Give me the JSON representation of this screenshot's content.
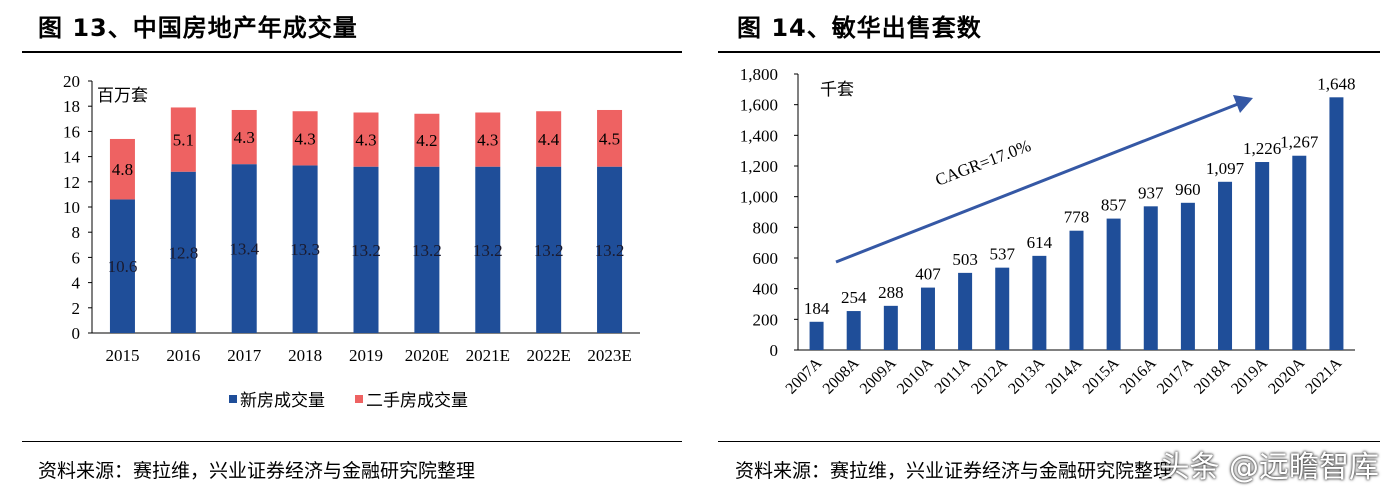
{
  "left": {
    "title": "图 13、中国房地产年成交量",
    "source": "资料来源：赛拉维，兴业证券经济与金融研究院整理"
  },
  "right": {
    "title": "图 14、敏华出售套数",
    "source": "资料来源：赛拉维，兴业证券经济与金融研究院整理"
  },
  "watermark": "头条 @远瞻智库",
  "colors": {
    "blue": "#1F4E99",
    "red": "#EE6262",
    "axis": "#000000"
  },
  "chart_data": [
    {
      "type": "bar",
      "stacked": true,
      "unit_label": "百万套",
      "categories": [
        "2015",
        "2016",
        "2017",
        "2018",
        "2019",
        "2020E",
        "2021E",
        "2022E",
        "2023E"
      ],
      "series": [
        {
          "name": "新房成交量",
          "values": [
            10.6,
            12.8,
            13.4,
            13.3,
            13.2,
            13.2,
            13.2,
            13.2,
            13.2
          ]
        },
        {
          "name": "二手房成交量",
          "values": [
            4.8,
            5.1,
            4.3,
            4.3,
            4.3,
            4.2,
            4.3,
            4.4,
            4.5
          ]
        }
      ],
      "ylim": [
        0,
        20
      ],
      "yticks": [
        0,
        2,
        4,
        6,
        8,
        10,
        12,
        14,
        16,
        18,
        20
      ],
      "legend": "bottom"
    },
    {
      "type": "bar",
      "unit_label": "千套",
      "categories": [
        "2007A",
        "2008A",
        "2009A",
        "2010A",
        "2011A",
        "2012A",
        "2013A",
        "2014A",
        "2015A",
        "2016A",
        "2017A",
        "2018A",
        "2019A",
        "2020A",
        "2021A"
      ],
      "values": [
        184,
        254,
        288,
        407,
        503,
        537,
        614,
        778,
        857,
        937,
        960,
        1097,
        1226,
        1267,
        1648
      ],
      "value_labels": [
        "184",
        "254",
        "288",
        "407",
        "503",
        "537",
        "614",
        "778",
        "857",
        "937",
        "960",
        "1,097",
        "1,226",
        "1,267",
        "1,648"
      ],
      "ylim": [
        0,
        1800
      ],
      "yticks": [
        0,
        200,
        400,
        600,
        800,
        1000,
        1200,
        1400,
        1600,
        1800
      ],
      "ytick_labels": [
        "0",
        "200",
        "400",
        "600",
        "800",
        "1,000",
        "1,200",
        "1,400",
        "1,600",
        "1,800"
      ],
      "annotation": "CAGR=17.0%"
    }
  ]
}
